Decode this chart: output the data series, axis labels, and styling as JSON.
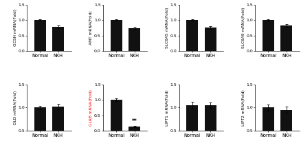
{
  "panels": [
    {
      "ylabel": "GCSH mRNA(Fold)",
      "ylabel_color": "black",
      "categories": [
        "Normal",
        "NKH"
      ],
      "values": [
        1.0,
        0.78
      ],
      "errors": [
        0.03,
        0.05
      ],
      "ylim": [
        0,
        1.5
      ],
      "yticks": [
        0,
        0.5,
        1.0,
        1.5
      ],
      "annotation": null
    },
    {
      "ylabel": "AMT mRNA(Fold)",
      "ylabel_color": "black",
      "categories": [
        "Normal",
        "NKH"
      ],
      "values": [
        1.0,
        0.74
      ],
      "errors": [
        0.03,
        0.04
      ],
      "ylim": [
        0,
        1.5
      ],
      "yticks": [
        0,
        0.5,
        1.0,
        1.5
      ],
      "annotation": null
    },
    {
      "ylabel": "SLC6A5 mRNA(Fold)",
      "ylabel_color": "black",
      "categories": [
        "Normal",
        "NKH"
      ],
      "values": [
        1.0,
        0.76
      ],
      "errors": [
        0.03,
        0.04
      ],
      "ylim": [
        0,
        1.5
      ],
      "yticks": [
        0,
        0.5,
        1.0,
        1.5
      ],
      "annotation": null
    },
    {
      "ylabel": "SLC6A9 mRNA(Fold)",
      "ylabel_color": "black",
      "categories": [
        "Normal",
        "NKH"
      ],
      "values": [
        1.0,
        0.82
      ],
      "errors": [
        0.03,
        0.05
      ],
      "ylim": [
        0,
        1.5
      ],
      "yticks": [
        0,
        0.5,
        1.0,
        1.5
      ],
      "annotation": null
    },
    {
      "ylabel": "DLD mRNA(Fold)",
      "ylabel_color": "black",
      "categories": [
        "Normal",
        "NKH"
      ],
      "values": [
        1.0,
        1.02
      ],
      "errors": [
        0.04,
        0.06
      ],
      "ylim": [
        0.5,
        1.5
      ],
      "yticks": [
        0.5,
        1.0,
        1.5
      ],
      "annotation": null
    },
    {
      "ylabel": "GLRB mRNA(Fold)",
      "ylabel_color": "red",
      "categories": [
        "Normal",
        "NKH"
      ],
      "values": [
        1.0,
        0.13
      ],
      "errors": [
        0.04,
        0.02
      ],
      "ylim": [
        0,
        1.5
      ],
      "yticks": [
        0,
        0.5,
        1.0,
        1.5
      ],
      "annotation": "**"
    },
    {
      "ylabel": "LIPT1 mRNA(Fold)",
      "ylabel_color": "black",
      "categories": [
        "Normal",
        "NKH"
      ],
      "values": [
        1.05,
        1.05
      ],
      "errors": [
        0.07,
        0.06
      ],
      "ylim": [
        0.5,
        1.5
      ],
      "yticks": [
        0.5,
        1.0,
        1.5
      ],
      "annotation": null
    },
    {
      "ylabel": "LIPT2 mRNA(Fold)",
      "ylabel_color": "black",
      "categories": [
        "Normal",
        "NKH"
      ],
      "values": [
        1.0,
        0.95
      ],
      "errors": [
        0.07,
        0.07
      ],
      "ylim": [
        0.5,
        1.5
      ],
      "yticks": [
        0.5,
        1.0,
        1.5
      ],
      "annotation": null
    }
  ],
  "bar_color": "#111111",
  "bar_width": 0.45,
  "background_color": "#ffffff",
  "tick_fontsize": 4.5,
  "ylabel_fontsize": 4.2,
  "xlabel_fontsize": 4.8
}
